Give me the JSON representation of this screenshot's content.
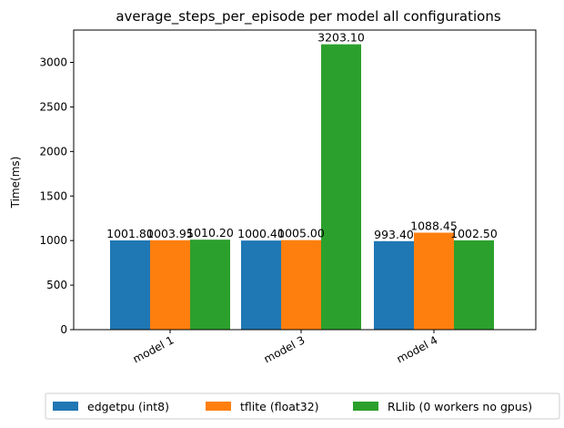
{
  "chart_data": {
    "type": "bar",
    "title": "average_steps_per_episode per model all configurations",
    "xlabel": "",
    "ylabel": "Time(ms)",
    "categories": [
      "model 1",
      "model 3",
      "model 4"
    ],
    "ylim": [
      0,
      3363
    ],
    "yticks": [
      0,
      500,
      1000,
      1500,
      2000,
      2500,
      3000
    ],
    "legend_position": "bottom-center",
    "series": [
      {
        "name": "edgetpu (int8)",
        "color": "#1f77b4",
        "values": [
          1001.8,
          1000.4,
          993.4
        ],
        "labels": [
          "1001.80",
          "1000.40",
          "993.40"
        ]
      },
      {
        "name": "tflite (float32)",
        "color": "#ff7f0e",
        "values": [
          1003.95,
          1005.0,
          1088.45
        ],
        "labels": [
          "1003.95",
          "1005.00",
          "1088.45"
        ]
      },
      {
        "name": "RLlib (0 workers no gpus)",
        "color": "#2ca02c",
        "values": [
          1010.2,
          3203.1,
          1002.5
        ],
        "labels": [
          "1010.20",
          "3203.10",
          "1002.50"
        ]
      }
    ]
  }
}
